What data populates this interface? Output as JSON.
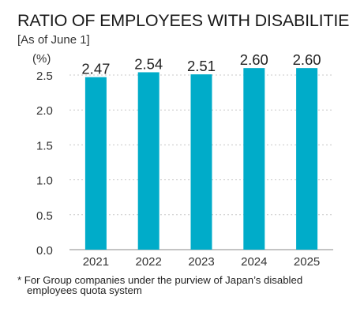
{
  "chart_data": {
    "type": "bar",
    "title": "RATIO OF EMPLOYEES WITH DISABILITIES",
    "subtitle": "[As of June 1]",
    "unit_label": "(%)",
    "categories": [
      "2021",
      "2022",
      "2023",
      "2024",
      "2025"
    ],
    "values": [
      2.47,
      2.54,
      2.51,
      2.6,
      2.6
    ],
    "value_labels": [
      "2.47",
      "2.54",
      "2.51",
      "2.60",
      "2.60"
    ],
    "y_ticks": [
      "0.0",
      "0.5",
      "1.0",
      "1.5",
      "2.0",
      "2.5"
    ],
    "ylim": [
      0,
      2.8
    ],
    "grid": "dashed horizontal",
    "bar_color": "#00acc9",
    "xlabel": "",
    "ylabel": ""
  },
  "footnote": {
    "line1": "* For Group companies under the purview of Japan’s disabled",
    "line2": "employees quota system"
  }
}
